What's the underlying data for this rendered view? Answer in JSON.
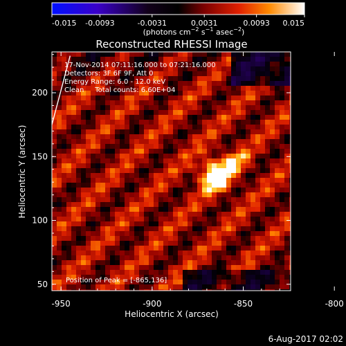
{
  "chart_data": {
    "type": "heatmap",
    "title": "Reconstructed RHESSI Image",
    "xlabel": "Heliocentric X (arcsec)",
    "ylabel": "Heliocentric Y (arcsec)",
    "x_ticks": [
      "-950",
      "-900",
      "-850",
      "-800"
    ],
    "x_tick_values": [
      -950,
      -900,
      -850,
      -800
    ],
    "y_ticks": [
      "50",
      "100",
      "150",
      "200"
    ],
    "y_tick_values": [
      50,
      100,
      150,
      200
    ],
    "xlim": [
      -955,
      -824
    ],
    "ylim": [
      45,
      232
    ],
    "colorbar": {
      "ticks": [
        "-0.015",
        "-0.0093",
        "-0.0031",
        "0.0031",
        "0.0093",
        "0.015"
      ],
      "tick_values": [
        -0.015,
        -0.0093,
        -0.0031,
        0.0031,
        0.0093,
        0.015
      ],
      "range": [
        -0.015,
        0.015
      ],
      "unit_text": "(photons cm",
      "unit_sup1": "−2",
      "unit_mid": " s",
      "unit_sup2": "−1",
      "unit_end": " asec",
      "unit_sup3": "−2",
      "unit_close": ")",
      "colors": [
        "#0000ff",
        "#4b0082",
        "#000000",
        "#8b0000",
        "#ff4500",
        "#ffa500",
        "#ffffff"
      ]
    },
    "annotations": [
      "17-Nov-2014 07:11:16.000 to 07:21:16.000",
      "Detectors: 3F 6F 9F, Att 0",
      "Energy Range: 6.0 - 12.0 keV",
      "Clean     Total counts: 6.60E+04"
    ],
    "peak_label": "Position of Peak = [-865,136]",
    "peak_x": -865,
    "peak_y": 136,
    "limb_line": [
      [
        -955,
        175
      ],
      [
        -945,
        229
      ]
    ],
    "grid": false
  },
  "footer_timestamp": "6-Aug-2017 02:02"
}
